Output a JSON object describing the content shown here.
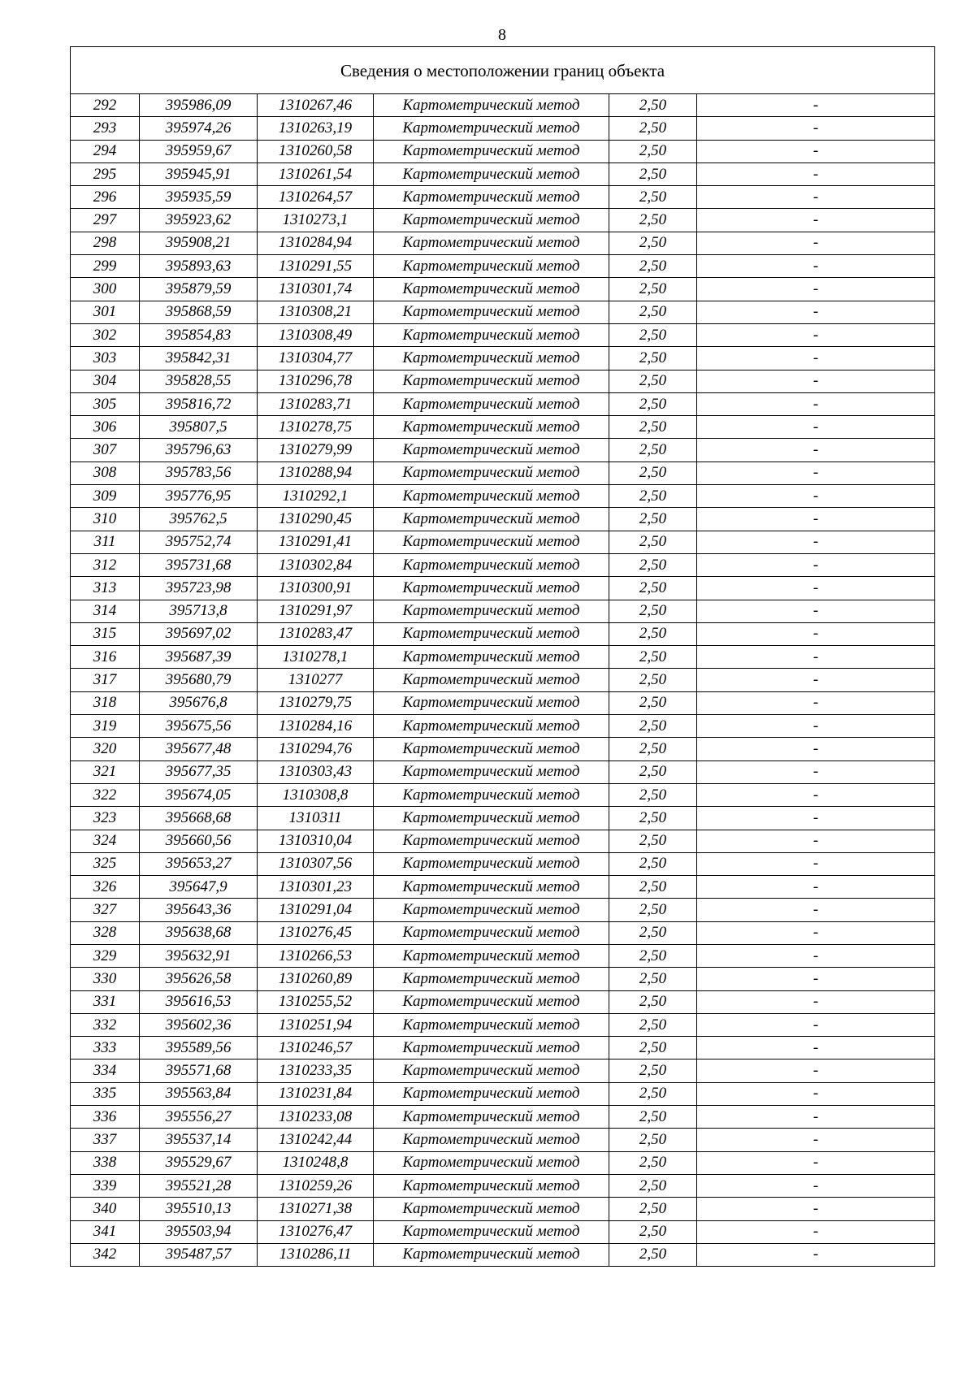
{
  "page_number": "8",
  "table": {
    "title": "Сведения о местоположении границ объекта",
    "rows": [
      [
        "292",
        "395986,09",
        "1310267,46",
        "Картометрический метод",
        "2,50",
        "-"
      ],
      [
        "293",
        "395974,26",
        "1310263,19",
        "Картометрический метод",
        "2,50",
        "-"
      ],
      [
        "294",
        "395959,67",
        "1310260,58",
        "Картометрический метод",
        "2,50",
        "-"
      ],
      [
        "295",
        "395945,91",
        "1310261,54",
        "Картометрический метод",
        "2,50",
        "-"
      ],
      [
        "296",
        "395935,59",
        "1310264,57",
        "Картометрический метод",
        "2,50",
        "-"
      ],
      [
        "297",
        "395923,62",
        "1310273,1",
        "Картометрический метод",
        "2,50",
        "-"
      ],
      [
        "298",
        "395908,21",
        "1310284,94",
        "Картометрический метод",
        "2,50",
        "-"
      ],
      [
        "299",
        "395893,63",
        "1310291,55",
        "Картометрический метод",
        "2,50",
        "-"
      ],
      [
        "300",
        "395879,59",
        "1310301,74",
        "Картометрический метод",
        "2,50",
        "-"
      ],
      [
        "301",
        "395868,59",
        "1310308,21",
        "Картометрический метод",
        "2,50",
        "-"
      ],
      [
        "302",
        "395854,83",
        "1310308,49",
        "Картометрический метод",
        "2,50",
        "-"
      ],
      [
        "303",
        "395842,31",
        "1310304,77",
        "Картометрический метод",
        "2,50",
        "-"
      ],
      [
        "304",
        "395828,55",
        "1310296,78",
        "Картометрический метод",
        "2,50",
        "-"
      ],
      [
        "305",
        "395816,72",
        "1310283,71",
        "Картометрический метод",
        "2,50",
        "-"
      ],
      [
        "306",
        "395807,5",
        "1310278,75",
        "Картометрический метод",
        "2,50",
        "-"
      ],
      [
        "307",
        "395796,63",
        "1310279,99",
        "Картометрический метод",
        "2,50",
        "-"
      ],
      [
        "308",
        "395783,56",
        "1310288,94",
        "Картометрический метод",
        "2,50",
        "-"
      ],
      [
        "309",
        "395776,95",
        "1310292,1",
        "Картометрический метод",
        "2,50",
        "-"
      ],
      [
        "310",
        "395762,5",
        "1310290,45",
        "Картометрический метод",
        "2,50",
        "-"
      ],
      [
        "311",
        "395752,74",
        "1310291,41",
        "Картометрический метод",
        "2,50",
        "-"
      ],
      [
        "312",
        "395731,68",
        "1310302,84",
        "Картометрический метод",
        "2,50",
        "-"
      ],
      [
        "313",
        "395723,98",
        "1310300,91",
        "Картометрический метод",
        "2,50",
        "-"
      ],
      [
        "314",
        "395713,8",
        "1310291,97",
        "Картометрический метод",
        "2,50",
        "-"
      ],
      [
        "315",
        "395697,02",
        "1310283,47",
        "Картометрический метод",
        "2,50",
        "-"
      ],
      [
        "316",
        "395687,39",
        "1310278,1",
        "Картометрический метод",
        "2,50",
        "-"
      ],
      [
        "317",
        "395680,79",
        "1310277",
        "Картометрический метод",
        "2,50",
        "-"
      ],
      [
        "318",
        "395676,8",
        "1310279,75",
        "Картометрический метод",
        "2,50",
        "-"
      ],
      [
        "319",
        "395675,56",
        "1310284,16",
        "Картометрический метод",
        "2,50",
        "-"
      ],
      [
        "320",
        "395677,48",
        "1310294,76",
        "Картометрический метод",
        "2,50",
        "-"
      ],
      [
        "321",
        "395677,35",
        "1310303,43",
        "Картометрический метод",
        "2,50",
        "-"
      ],
      [
        "322",
        "395674,05",
        "1310308,8",
        "Картометрический метод",
        "2,50",
        "-"
      ],
      [
        "323",
        "395668,68",
        "1310311",
        "Картометрический метод",
        "2,50",
        "-"
      ],
      [
        "324",
        "395660,56",
        "1310310,04",
        "Картометрический метод",
        "2,50",
        "-"
      ],
      [
        "325",
        "395653,27",
        "1310307,56",
        "Картометрический метод",
        "2,50",
        "-"
      ],
      [
        "326",
        "395647,9",
        "1310301,23",
        "Картометрический метод",
        "2,50",
        "-"
      ],
      [
        "327",
        "395643,36",
        "1310291,04",
        "Картометрический метод",
        "2,50",
        "-"
      ],
      [
        "328",
        "395638,68",
        "1310276,45",
        "Картометрический метод",
        "2,50",
        "-"
      ],
      [
        "329",
        "395632,91",
        "1310266,53",
        "Картометрический метод",
        "2,50",
        "-"
      ],
      [
        "330",
        "395626,58",
        "1310260,89",
        "Картометрический метод",
        "2,50",
        "-"
      ],
      [
        "331",
        "395616,53",
        "1310255,52",
        "Картометрический метод",
        "2,50",
        "-"
      ],
      [
        "332",
        "395602,36",
        "1310251,94",
        "Картометрический метод",
        "2,50",
        "-"
      ],
      [
        "333",
        "395589,56",
        "1310246,57",
        "Картометрический метод",
        "2,50",
        "-"
      ],
      [
        "334",
        "395571,68",
        "1310233,35",
        "Картометрический метод",
        "2,50",
        "-"
      ],
      [
        "335",
        "395563,84",
        "1310231,84",
        "Картометрический метод",
        "2,50",
        "-"
      ],
      [
        "336",
        "395556,27",
        "1310233,08",
        "Картометрический метод",
        "2,50",
        "-"
      ],
      [
        "337",
        "395537,14",
        "1310242,44",
        "Картометрический метод",
        "2,50",
        "-"
      ],
      [
        "338",
        "395529,67",
        "1310248,8",
        "Картометрический метод",
        "2,50",
        "-"
      ],
      [
        "339",
        "395521,28",
        "1310259,26",
        "Картометрический метод",
        "2,50",
        "-"
      ],
      [
        "340",
        "395510,13",
        "1310271,38",
        "Картометрический метод",
        "2,50",
        "-"
      ],
      [
        "341",
        "395503,94",
        "1310276,47",
        "Картометрический метод",
        "2,50",
        "-"
      ],
      [
        "342",
        "395487,57",
        "1310286,11",
        "Картометрический метод",
        "2,50",
        "-"
      ]
    ]
  }
}
